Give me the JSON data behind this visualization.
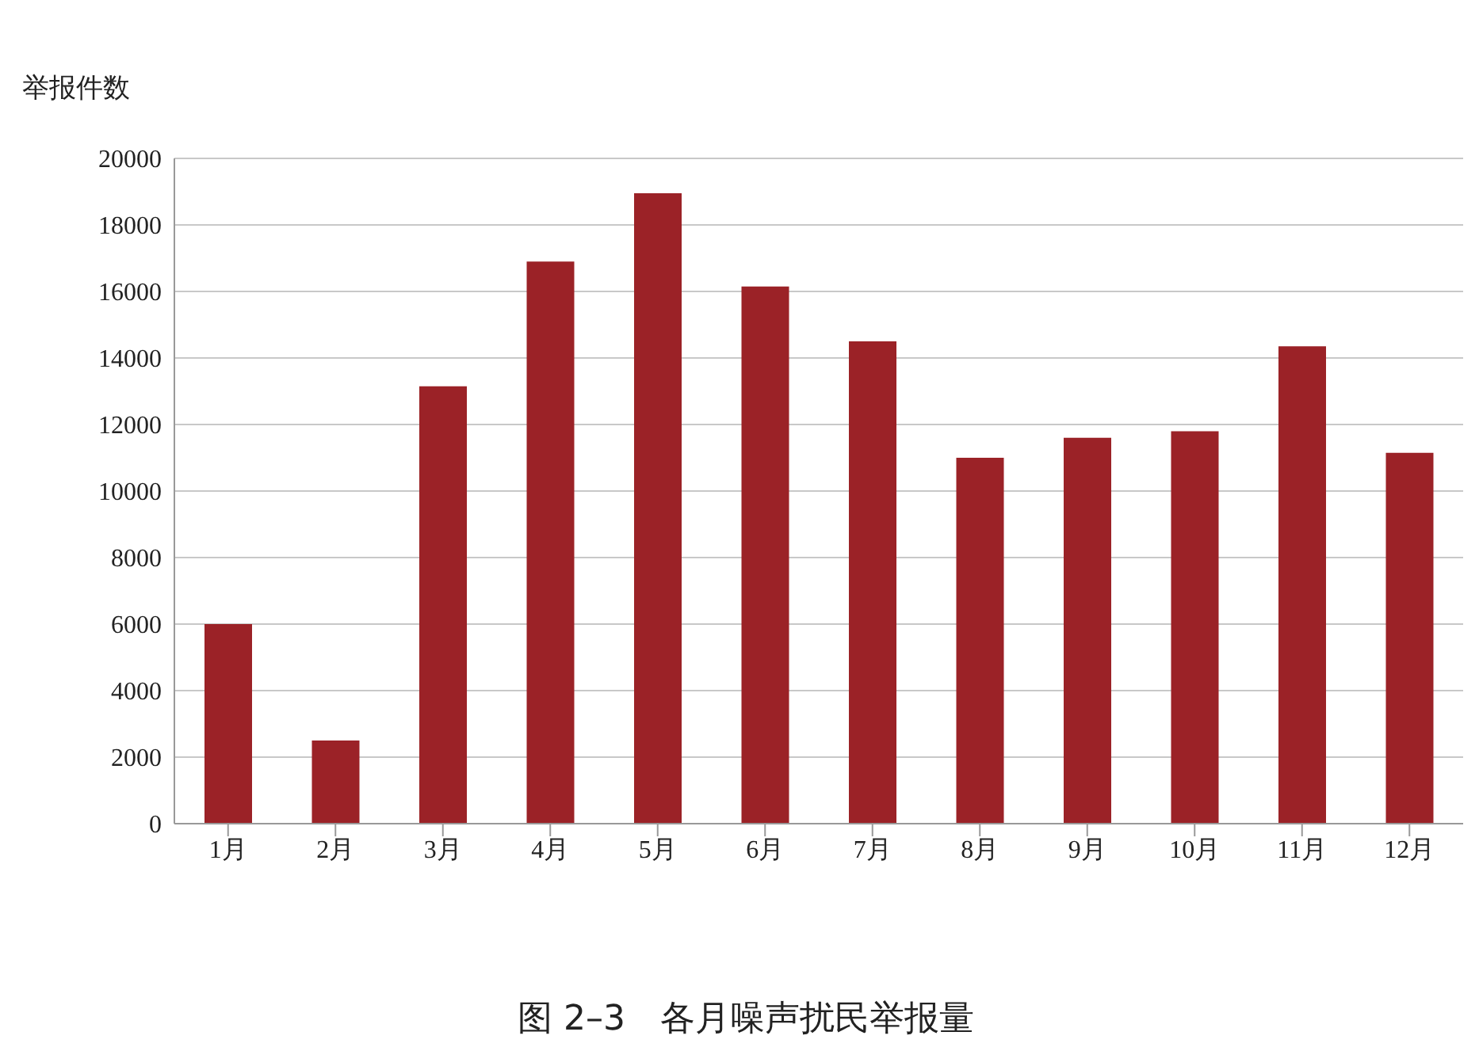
{
  "chart_data": {
    "type": "bar",
    "title": "图 2–3　各月噪声扰民举报量",
    "ylabel": "举报件数",
    "categories": [
      "1月",
      "2月",
      "3月",
      "4月",
      "5月",
      "6月",
      "7月",
      "8月",
      "9月",
      "10月",
      "11月",
      "12月"
    ],
    "values": [
      6000,
      2500,
      13150,
      16900,
      18950,
      16150,
      14500,
      11000,
      11600,
      11800,
      14350,
      11150
    ],
    "color": "#9b2227",
    "ylim": [
      0,
      20000
    ],
    "yticks": [
      0,
      2000,
      4000,
      6000,
      8000,
      10000,
      12000,
      14000,
      16000,
      18000,
      20000
    ],
    "grid": "y"
  }
}
